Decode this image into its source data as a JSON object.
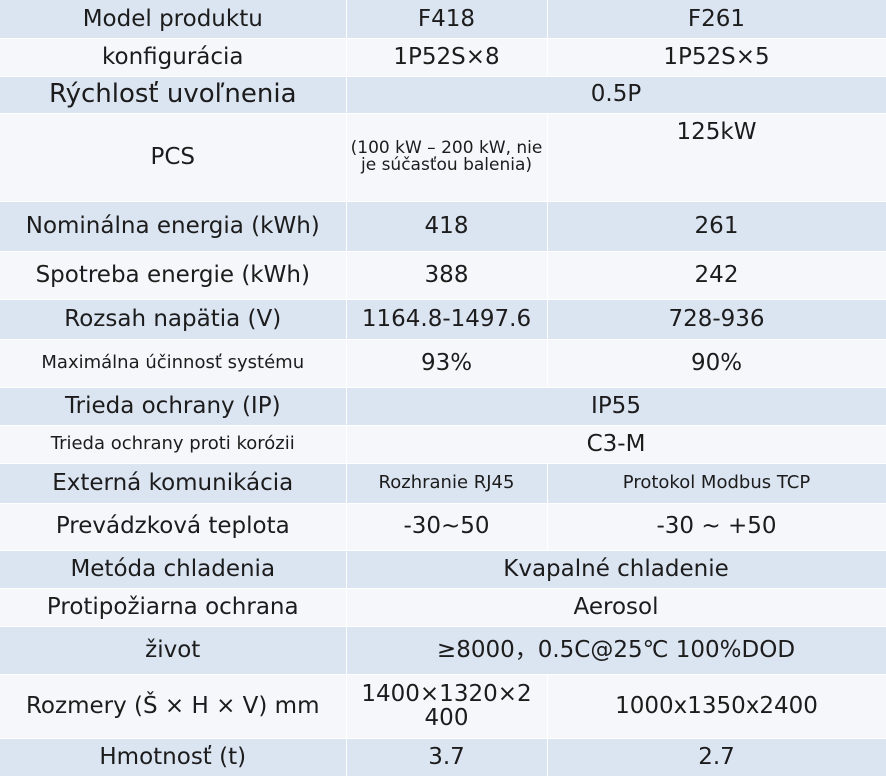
{
  "header": {
    "label": "Model produktu",
    "model_a": "F418",
    "model_b": "F261"
  },
  "rows": [
    {
      "label": "konfigurácia",
      "a": "1P52S×8",
      "b": "1P52S×5"
    },
    {
      "label": "Rýchlosť uvoľnenia",
      "merged": "0.5P"
    },
    {
      "label": "PCS",
      "a": "(100 kW – 200 kW, nie je súčasťou balenia)",
      "b": "125kW"
    },
    {
      "label": "Nominálna energia (kWh)",
      "a": "418",
      "b": "261"
    },
    {
      "label": "Spotreba energie (kWh)",
      "a": "388",
      "b": "242"
    },
    {
      "label": "Rozsah napätia (V)",
      "a": "1164.8-1497.6",
      "b": "728-936"
    },
    {
      "label": "Maximálna účinnosť systému",
      "a": "93%",
      "b": "90%"
    },
    {
      "label": "Trieda ochrany (IP)",
      "merged": "IP55"
    },
    {
      "label": "Trieda ochrany proti korózii",
      "merged": "C3-M"
    },
    {
      "label": "Externá komunikácia",
      "a": "Rozhranie RJ45",
      "b": "Protokol Modbus TCP"
    },
    {
      "label": "Prevádzková teplota",
      "a": "-30~50",
      "b": "-30 ~ +50"
    },
    {
      "label": "Metóda chladenia",
      "merged": "Kvapalné chladenie"
    },
    {
      "label": "Protipožiarna ochrana",
      "merged": "Aerosol"
    },
    {
      "label": "život",
      "merged": "≥8000，0.5C@25℃ 100%DOD"
    },
    {
      "label": "Rozmery (Š × H × V) mm",
      "a": "1400×1320×2 400",
      "b": "1000x1350x2400"
    },
    {
      "label": "Hmotnosť (t)",
      "a": "3.7",
      "b": "2.7"
    }
  ]
}
